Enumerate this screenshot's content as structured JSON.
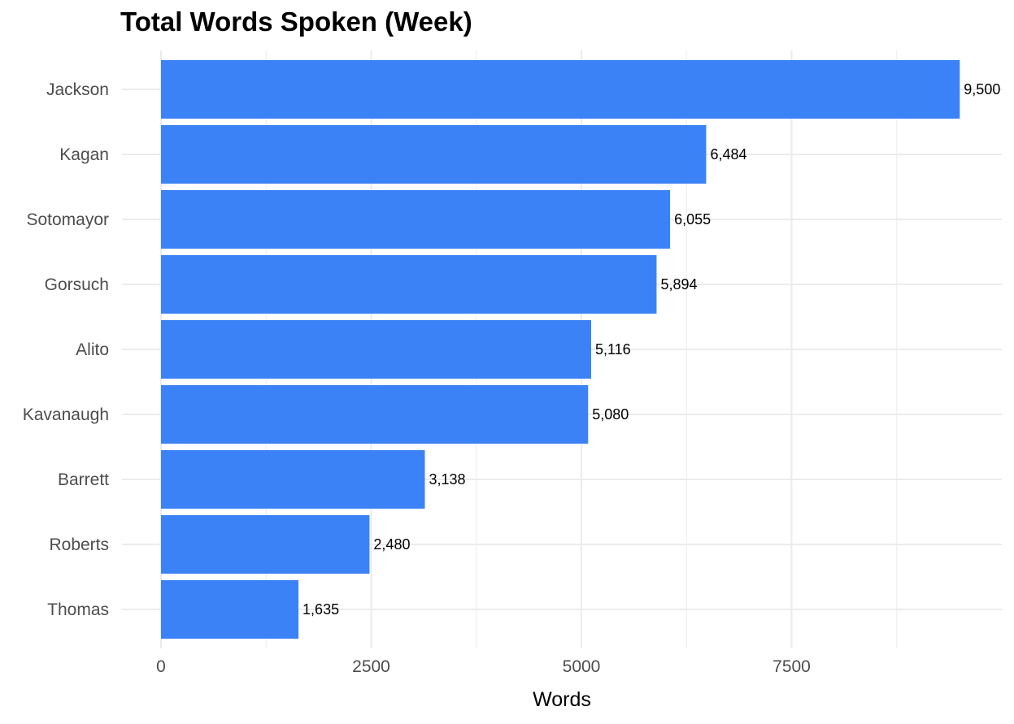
{
  "chart_data": {
    "type": "bar",
    "orientation": "horizontal",
    "title": "Total Words Spoken (Week)",
    "xlabel": "Words",
    "ylabel": "",
    "categories": [
      "Jackson",
      "Kagan",
      "Sotomayor",
      "Gorsuch",
      "Alito",
      "Kavanaugh",
      "Barrett",
      "Roberts",
      "Thomas"
    ],
    "values": [
      9500,
      6484,
      6055,
      5894,
      5116,
      5080,
      3138,
      2480,
      1635
    ],
    "value_labels": [
      "9,500",
      "6,484",
      "6,055",
      "5,894",
      "5,116",
      "5,080",
      "3,138",
      "2,480",
      "1,635"
    ],
    "xlim": [
      0,
      10150
    ],
    "xticks": [
      0,
      2500,
      5000,
      7500
    ],
    "xtick_labels": [
      "0",
      "2500",
      "5000",
      "7500"
    ],
    "grid": true,
    "legend": "none",
    "bar_color": "#3b82f6",
    "grid_color": "#ebebeb"
  }
}
